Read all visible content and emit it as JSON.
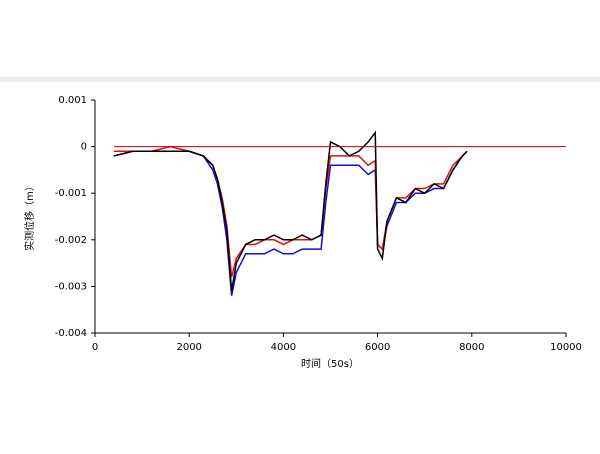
{
  "chart_data": {
    "type": "line",
    "xlabel": "时间（50s）",
    "ylabel": "实测位移（m）",
    "xlim": [
      0,
      10000
    ],
    "xticks": [
      0,
      2000,
      4000,
      6000,
      8000,
      10000
    ],
    "ylim": [
      -0.004,
      0.001
    ],
    "yticks": [
      0.001,
      0,
      -0.001,
      -0.002,
      -0.003,
      -0.004
    ],
    "reference_line": {
      "value": 0,
      "color": "#cc0000"
    },
    "x": [
      400,
      800,
      1200,
      1600,
      2000,
      2300,
      2500,
      2600,
      2700,
      2800,
      2900,
      3000,
      3200,
      3400,
      3600,
      3800,
      4000,
      4200,
      4400,
      4600,
      4800,
      4900,
      5000,
      5200,
      5400,
      5600,
      5800,
      5950,
      6000,
      6100,
      6200,
      6400,
      6600,
      6800,
      7000,
      7200,
      7400,
      7600,
      7800,
      7900
    ],
    "series": [
      {
        "color": "#1010e0",
        "values": [
          -0.0002,
          -0.0001,
          -0.0001,
          -0.0001,
          -0.0001,
          -0.0002,
          -0.0005,
          -0.0008,
          -0.0013,
          -0.002,
          -0.0032,
          -0.0027,
          -0.0023,
          -0.0023,
          -0.0023,
          -0.0022,
          -0.0023,
          -0.0023,
          -0.0022,
          -0.0022,
          -0.0022,
          -0.0012,
          -0.0004,
          -0.0004,
          -0.0004,
          -0.0004,
          -0.0006,
          -0.0005,
          -0.0021,
          -0.0022,
          -0.0017,
          -0.0012,
          -0.0012,
          -0.001,
          -0.001,
          -0.0009,
          -0.0009,
          -0.0005,
          -0.0002,
          -0.0001
        ]
      },
      {
        "color": "#e01010",
        "values": [
          -0.0001,
          -0.0001,
          -0.0001,
          0,
          -0.0001,
          -0.0002,
          -0.0004,
          -0.0007,
          -0.0011,
          -0.0017,
          -0.0028,
          -0.0024,
          -0.0021,
          -0.0021,
          -0.002,
          -0.002,
          -0.0021,
          -0.002,
          -0.002,
          -0.002,
          -0.0019,
          -0.0009,
          -0.0002,
          -0.0002,
          -0.0002,
          -0.0002,
          -0.0004,
          -0.0003,
          -0.0021,
          -0.0022,
          -0.0016,
          -0.0011,
          -0.0011,
          -0.0009,
          -0.0009,
          -0.0008,
          -0.0008,
          -0.0004,
          -0.0002,
          -0.0001
        ]
      },
      {
        "color": "#000000",
        "values": [
          -0.0002,
          -0.0001,
          -0.0001,
          -0.0001,
          -0.0001,
          -0.0002,
          -0.0004,
          -0.0007,
          -0.0012,
          -0.0018,
          -0.0031,
          -0.0025,
          -0.0021,
          -0.002,
          -0.002,
          -0.0019,
          -0.002,
          -0.002,
          -0.0019,
          -0.002,
          -0.0019,
          -0.0008,
          0.0001,
          0,
          -0.0002,
          -0.0001,
          0.0001,
          0.0003,
          -0.0022,
          -0.0024,
          -0.0016,
          -0.0011,
          -0.0012,
          -0.0009,
          -0.001,
          -0.0008,
          -0.0009,
          -0.0005,
          -0.0002,
          -0.0001
        ]
      }
    ]
  }
}
